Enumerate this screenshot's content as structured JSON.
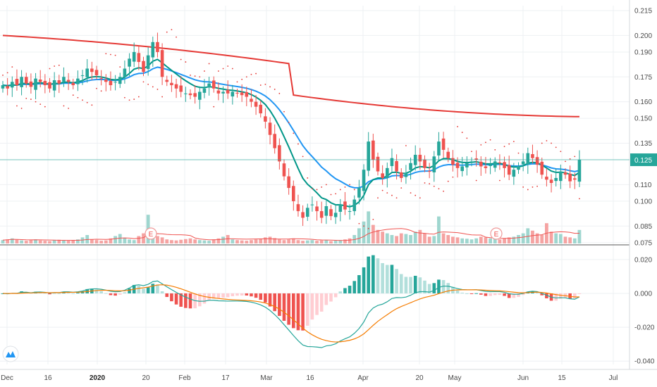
{
  "chart_data": [
    {
      "type": "candlestick",
      "price_axis": {
        "ticks": [
          "0.215",
          "0.200",
          "0.190",
          "0.175",
          "0.160",
          "0.150",
          "0.135",
          "0.125",
          "0.110",
          "0.100",
          "0.085",
          "0.075"
        ],
        "range": [
          0.0745,
          0.218
        ]
      },
      "last_price_label": "0.125",
      "last_price": 0.125,
      "x_ticks": [
        "Dec",
        "16",
        "2020",
        "20",
        "Feb",
        "17",
        "Mar",
        "16",
        "Apr",
        "20",
        "May",
        "Jun",
        "15",
        "Jul"
      ],
      "earnings_markers": [
        "E",
        "E"
      ],
      "series_colors": {
        "up": "#26a69a",
        "down": "#ef5350",
        "ma_long": "#e53935",
        "ma_mid": "#2196f3",
        "ma_short": "#009688",
        "sar": "#e53935",
        "volume_up": "#9fd6cf",
        "volume_down": "#f5a3a2",
        "volume_ma": "#ef5350"
      },
      "closes": [
        0.17,
        0.168,
        0.172,
        0.17,
        0.175,
        0.171,
        0.169,
        0.174,
        0.172,
        0.17,
        0.168,
        0.173,
        0.171,
        0.175,
        0.172,
        0.17,
        0.174,
        0.176,
        0.18,
        0.178,
        0.176,
        0.174,
        0.172,
        0.17,
        0.172,
        0.175,
        0.18,
        0.186,
        0.19,
        0.184,
        0.178,
        0.188,
        0.196,
        0.19,
        0.175,
        0.172,
        0.17,
        0.168,
        0.166,
        0.165,
        0.164,
        0.163,
        0.166,
        0.168,
        0.171,
        0.168,
        0.165,
        0.166,
        0.165,
        0.166,
        0.165,
        0.164,
        0.163,
        0.16,
        0.157,
        0.153,
        0.148,
        0.14,
        0.132,
        0.124,
        0.115,
        0.108,
        0.1,
        0.094,
        0.09,
        0.096,
        0.098,
        0.094,
        0.09,
        0.097,
        0.091,
        0.093,
        0.098,
        0.095,
        0.094,
        0.101,
        0.108,
        0.119,
        0.136,
        0.125,
        0.118,
        0.114,
        0.12,
        0.126,
        0.118,
        0.114,
        0.117,
        0.123,
        0.128,
        0.124,
        0.12,
        0.118,
        0.127,
        0.136,
        0.131,
        0.126,
        0.122,
        0.12,
        0.121,
        0.123,
        0.124,
        0.125,
        0.121,
        0.12,
        0.122,
        0.124,
        0.123,
        0.12,
        0.116,
        0.119,
        0.121,
        0.124,
        0.129,
        0.126,
        0.122,
        0.116,
        0.113,
        0.111,
        0.114,
        0.118,
        0.116,
        0.112,
        0.113,
        0.125
      ],
      "volume": [
        0.1,
        0.12,
        0.15,
        0.11,
        0.09,
        0.08,
        0.1,
        0.12,
        0.09,
        0.08,
        0.07,
        0.1,
        0.11,
        0.09,
        0.08,
        0.09,
        0.12,
        0.18,
        0.25,
        0.12,
        0.1,
        0.08,
        0.09,
        0.15,
        0.22,
        0.28,
        0.17,
        0.12,
        0.1,
        0.22,
        0.3,
        0.85,
        0.4,
        0.22,
        0.18,
        0.12,
        0.1,
        0.09,
        0.11,
        0.13,
        0.15,
        0.12,
        0.1,
        0.09,
        0.08,
        0.12,
        0.15,
        0.2,
        0.25,
        0.12,
        0.1,
        0.09,
        0.08,
        0.1,
        0.12,
        0.14,
        0.18,
        0.2,
        0.16,
        0.12,
        0.1,
        0.12,
        0.15,
        0.1,
        0.08,
        0.09,
        0.1,
        0.08,
        0.09,
        0.1,
        0.07,
        0.08,
        0.1,
        0.12,
        0.15,
        0.25,
        0.45,
        0.65,
        0.95,
        0.55,
        0.4,
        0.35,
        0.3,
        0.25,
        0.22,
        0.3,
        0.28,
        0.25,
        0.35,
        0.4,
        0.3,
        0.2,
        0.22,
        0.8,
        0.3,
        0.25,
        0.2,
        0.18,
        0.15,
        0.14,
        0.12,
        0.15,
        0.2,
        0.18,
        0.15,
        0.14,
        0.12,
        0.15,
        0.18,
        0.2,
        0.25,
        0.3,
        0.45,
        0.38,
        0.3,
        0.25,
        0.6,
        0.35,
        0.3,
        0.28,
        0.2,
        0.18,
        0.15,
        0.4
      ],
      "macd": {
        "axis_ticks": [
          "0.020",
          "0.000",
          "-0.020",
          "-0.040"
        ],
        "range": [
          -0.042,
          0.027
        ]
      }
    }
  ],
  "logo": "tradingview-logo-icon"
}
